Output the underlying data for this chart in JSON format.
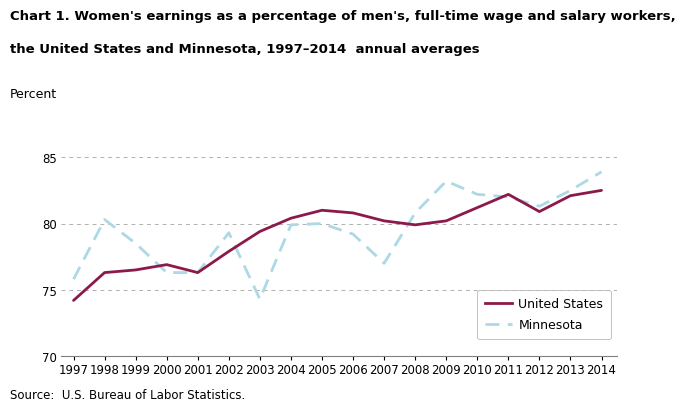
{
  "title_line1": "Chart 1. Women's earnings as a percentage of men's, full-time wage and salary workers,",
  "title_line2": "the United States and Minnesota, 1997–2014  annual averages",
  "ylabel": "Percent",
  "source": "Source:  U.S. Bureau of Labor Statistics.",
  "years": [
    1997,
    1998,
    1999,
    2000,
    2001,
    2002,
    2003,
    2004,
    2005,
    2006,
    2007,
    2008,
    2009,
    2010,
    2011,
    2012,
    2013,
    2014
  ],
  "us_data": [
    74.2,
    76.3,
    76.5,
    76.9,
    76.3,
    77.9,
    79.4,
    80.4,
    81.0,
    80.8,
    80.2,
    79.9,
    80.2,
    81.2,
    82.2,
    80.9,
    82.1,
    82.5
  ],
  "mn_data": [
    75.8,
    80.3,
    78.5,
    76.3,
    76.3,
    79.3,
    74.3,
    79.9,
    80.0,
    79.2,
    77.0,
    80.8,
    83.2,
    82.2,
    82.0,
    81.3,
    82.5,
    83.9
  ],
  "us_color": "#8B1A4A",
  "mn_color": "#ADD8E6",
  "us_label": "United States",
  "mn_label": "Minnesota",
  "ylim": [
    70,
    86
  ],
  "yticks": [
    70,
    75,
    80,
    85
  ],
  "grid_color": "#b0b0b0",
  "title_fontsize": 9.5,
  "tick_fontsize": 8.5,
  "label_fontsize": 9,
  "source_fontsize": 8.5,
  "legend_fontsize": 9
}
